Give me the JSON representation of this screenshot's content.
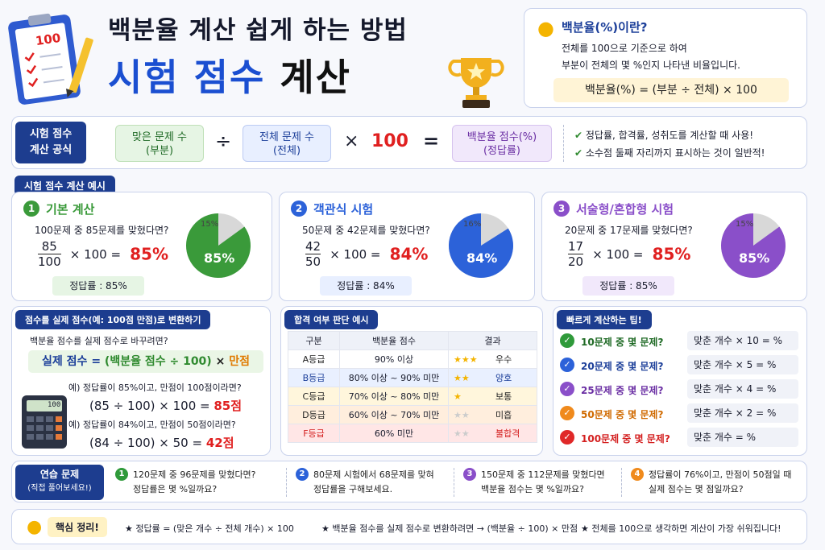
{
  "header": {
    "title1": "백분율 계산 쉽게 하는 방법",
    "title2a": "시험 점수",
    "title2b": "계산",
    "clip_score": "100"
  },
  "definition": {
    "heading": "백분율(%)이란?",
    "line1": "전체를 100으로 기준으로 하여",
    "line2": "부분이 전체의 몇 %인지 나타낸 비율입니다.",
    "formula": "백분율(%) = (부분 ÷ 전체) × 100"
  },
  "formula_bar": {
    "tag_line1": "시험 점수",
    "tag_line2": "계산 공식",
    "part_l1": "맞은 문제 수",
    "part_l2": "(부분)",
    "div": "÷",
    "total_l1": "전체 문제 수",
    "total_l2": "(전체)",
    "times": "×",
    "hundred": "100",
    "eq": "=",
    "result_l1": "백분율 점수(%)",
    "result_l2": "(정답률)",
    "note1": "정답률, 합격률, 성취도를 계산할 때 사용!",
    "note2": "소수점 둘째 자리까지 표시하는 것이 일반적!"
  },
  "examples": {
    "tag": "시험 점수 계산 예시",
    "items": [
      {
        "num": "1",
        "title": "기본 계산",
        "q": "100문제 중 85문제를 맞혔다면?",
        "numer": "85",
        "denom": "100",
        "mult": "× 100 =",
        "result": "85%",
        "answer": "정답률 : 85%",
        "pie_main": "85%",
        "pie_rest": "15%",
        "pct": 85,
        "color": "#3a9a3a"
      },
      {
        "num": "2",
        "title": "객관식 시험",
        "q": "50문제 중 42문제를 맞혔다면?",
        "numer": "42",
        "denom": "50",
        "mult": "× 100 =",
        "result": "84%",
        "answer": "정답률 : 84%",
        "pie_main": "84%",
        "pie_rest": "16%",
        "pct": 84,
        "color": "#2c62d9"
      },
      {
        "num": "3",
        "title": "서술형/혼합형 시험",
        "q": "20문제 중 17문제를 맞혔다면?",
        "numer": "17",
        "denom": "20",
        "mult": "× 100 =",
        "result": "85%",
        "answer": "정답률 : 85%",
        "pie_main": "85%",
        "pie_rest": "15%",
        "pct": 85,
        "color": "#8a4fc9"
      }
    ]
  },
  "convert": {
    "tag": "점수를 실제 점수(예: 100점 만점)로 변환하기",
    "intro": "백분율 점수를 실제 점수로 바꾸려면?",
    "formula_a": "실제 점수 = ",
    "formula_b": "(백분율 점수 ÷ 100)",
    "formula_c": " × ",
    "formula_d": "만점",
    "ex1": "예) 정답률이 85%이고, 만점이 100점이라면?",
    "calc1a": "(85 ÷ 100) × 100 = ",
    "calc1b": "85점",
    "ex2": "예) 정답률이 84%이고, 만점이 50점이라면?",
    "calc2a": "(84 ÷ 100) × 50 = ",
    "calc2b": "42점",
    "calc_screen": "100"
  },
  "grades": {
    "tag": "합격 여부 판단 예시",
    "headers": [
      "구분",
      "백분율 점수",
      "결과"
    ],
    "rows": [
      {
        "g": "A등급",
        "range": "90% 이상",
        "stars": 3,
        "result": "우수",
        "bg": "#ffffff",
        "rc": "#222"
      },
      {
        "g": "B등급",
        "range": "80% 이상 ~ 90% 미만",
        "stars": 2,
        "result": "양호",
        "bg": "#e9f0ff",
        "rc": "#1b3e99"
      },
      {
        "g": "C등급",
        "range": "70% 이상 ~ 80% 미만",
        "stars": 1,
        "result": "보통",
        "bg": "#fff6dc",
        "rc": "#222"
      },
      {
        "g": "D등급",
        "range": "60% 이상 ~ 70% 미만",
        "stars": 0,
        "result": "미흡",
        "bg": "#ffeedd",
        "rc": "#222"
      },
      {
        "g": "F등급",
        "range": "60% 미만",
        "stars": 0,
        "result": "불합격",
        "bg": "#ffe6e6",
        "rc": "#d42020"
      }
    ]
  },
  "tips": {
    "tag": "빠르게 계산하는 팁!",
    "rows": [
      {
        "q": "10문제 중 몇 문제?",
        "a": "맞춘 개수 × 10 = %",
        "c": "#2f9a3a",
        "tc": "#1f6a25"
      },
      {
        "q": "20문제 중 몇 문제?",
        "a": "맞춘 개수 × 5 = %",
        "c": "#2c62d9",
        "tc": "#1b3e99"
      },
      {
        "q": "25문제 중 몇 문제?",
        "a": "맞춘 개수 × 4 = %",
        "c": "#8a4fc9",
        "tc": "#6a2ea3"
      },
      {
        "q": "50문제 중 몇 문제?",
        "a": "맞춘 개수 × 2 = %",
        "c": "#f08a1c",
        "tc": "#d06a00"
      },
      {
        "q": "100문제 중 몇 문제?",
        "a": "맞춘 개수 = %",
        "c": "#e02828",
        "tc": "#d42020"
      }
    ]
  },
  "practice": {
    "tag_line1": "연습 문제",
    "tag_line2": "(직접 풀어보세요!)",
    "items": [
      {
        "num": "1",
        "l1": "120문제 중 96문제를 맞혔다면?",
        "l2": "정답률은 몇 %일까요?",
        "c": "#2f9a3a"
      },
      {
        "num": "2",
        "l1": "80문제 시험에서 68문제를 맞혀",
        "l2": "정답률을 구해보세요.",
        "c": "#2c62d9"
      },
      {
        "num": "3",
        "l1": "150문제 중 112문제를 맞혔다면",
        "l2": "백분율 점수는 몇 %일까요?",
        "c": "#8a4fc9"
      },
      {
        "num": "4",
        "l1": "정답률이 76%이고, 만점이 50점일 때",
        "l2": "실제 점수는 몇 점일까요?",
        "c": "#f08a1c"
      }
    ]
  },
  "summary": {
    "tag": "핵심 정리!",
    "s1": "★ 정답률 = (맞은 개수 ÷ 전체 개수) × 100",
    "s2": "★ 백분율 점수를 실제 점수로 변환하려면 → (백분율 ÷ 100) × 만점",
    "s3": "★ 전체를 100으로 생각하면 계산이 가장 쉬워집니다!"
  }
}
